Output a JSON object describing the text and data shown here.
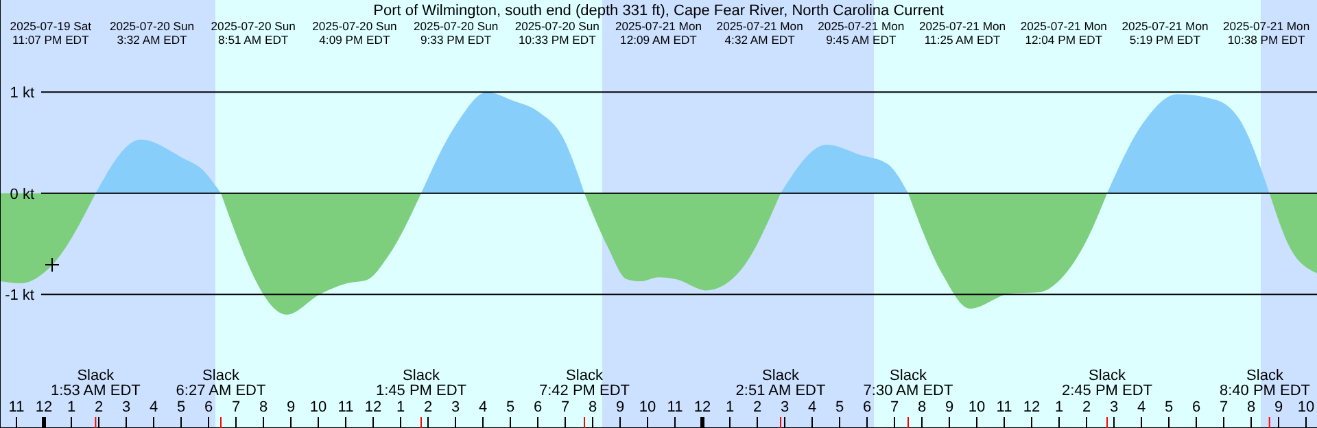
{
  "chart_data": {
    "type": "area",
    "title": "Port of Wilmington, south end (depth 331 ft), Cape Fear River, North Carolina Current",
    "x": [
      "2025-07-19T22:24",
      "2025-07-19T23:09",
      "2025-07-20T00:18",
      "2025-07-20T01:53",
      "2025-07-20T03:32",
      "2025-07-20T05:03",
      "2025-07-20T05:45",
      "2025-07-20T06:27",
      "2025-07-20T08:51",
      "2025-07-20T10:03",
      "2025-07-20T11:03",
      "2025-07-20T11:45",
      "2025-07-20T12:33",
      "2025-07-20T13:45",
      "2025-07-20T15:03",
      "2025-07-20T16:09",
      "2025-07-20T17:03",
      "2025-07-20T18:03",
      "2025-07-20T18:54",
      "2025-07-20T19:42",
      "2025-07-20T20:33",
      "2025-07-20T21:15",
      "2025-07-20T21:45",
      "2025-07-20T22:24",
      "2025-07-20T23:03",
      "2025-07-21T00:09",
      "2025-07-21T01:24",
      "2025-07-21T02:51",
      "2025-07-21T04:32",
      "2025-07-21T05:45",
      "2025-07-21T06:45",
      "2025-07-21T07:30",
      "2025-07-21T08:45",
      "2025-07-21T09:45",
      "2025-07-21T11:15",
      "2025-07-21T12:15",
      "2025-07-21T13:03",
      "2025-07-21T14:03",
      "2025-07-21T14:45",
      "2025-07-21T16:03",
      "2025-07-21T17:19",
      "2025-07-21T18:45",
      "2025-07-21T19:33",
      "2025-07-21T20:40",
      "2025-07-21T21:24",
      "2025-07-21T22:24"
    ],
    "series": [
      {
        "color": "#87cefa",
        "values": [
          null,
          null,
          null,
          0,
          0.53,
          0.35,
          0.24,
          0,
          null,
          null,
          null,
          null,
          null,
          0,
          0.69,
          1.0,
          0.92,
          0.8,
          0.56,
          0,
          null,
          null,
          null,
          null,
          null,
          null,
          null,
          0,
          0.48,
          0.38,
          0.29,
          0,
          null,
          null,
          null,
          null,
          null,
          null,
          0,
          0.69,
          0.98,
          0.92,
          0.74,
          0,
          null,
          null
        ]
      },
      {
        "color": "#7dcf7d",
        "values": [
          -0.87,
          -0.89,
          -0.71,
          0,
          null,
          null,
          null,
          0,
          -1.2,
          -1.0,
          -0.89,
          -0.86,
          -0.62,
          0,
          null,
          null,
          null,
          null,
          null,
          0,
          -0.53,
          -0.85,
          -0.87,
          -0.83,
          -0.85,
          -0.96,
          -0.76,
          0,
          null,
          null,
          null,
          0,
          -0.8,
          -1.14,
          -0.99,
          -0.98,
          -0.85,
          -0.44,
          0,
          null,
          null,
          null,
          null,
          0,
          -0.53,
          -0.79
        ]
      }
    ],
    "xlim": [
      "2025-07-19T22:24",
      "2025-07-21T22:24"
    ],
    "xticks": [
      {
        "value": "2025-07-19T23:00",
        "label": "11"
      },
      {
        "value": "2025-07-20T00:00",
        "label": "12"
      },
      {
        "value": "2025-07-20T01:00",
        "label": "1"
      },
      {
        "value": "2025-07-20T02:00",
        "label": "2"
      },
      {
        "value": "2025-07-20T03:00",
        "label": "3"
      },
      {
        "value": "2025-07-20T04:00",
        "label": "4"
      },
      {
        "value": "2025-07-20T05:00",
        "label": "5"
      },
      {
        "value": "2025-07-20T06:00",
        "label": "6"
      },
      {
        "value": "2025-07-20T07:00",
        "label": "7"
      },
      {
        "value": "2025-07-20T08:00",
        "label": "8"
      },
      {
        "value": "2025-07-20T09:00",
        "label": "9"
      },
      {
        "value": "2025-07-20T10:00",
        "label": "10"
      },
      {
        "value": "2025-07-20T11:00",
        "label": "11"
      },
      {
        "value": "2025-07-20T12:00",
        "label": "12"
      },
      {
        "value": "2025-07-20T13:00",
        "label": "1"
      },
      {
        "value": "2025-07-20T14:00",
        "label": "2"
      },
      {
        "value": "2025-07-20T15:00",
        "label": "3"
      },
      {
        "value": "2025-07-20T16:00",
        "label": "4"
      },
      {
        "value": "2025-07-20T17:00",
        "label": "5"
      },
      {
        "value": "2025-07-20T18:00",
        "label": "6"
      },
      {
        "value": "2025-07-20T19:00",
        "label": "7"
      },
      {
        "value": "2025-07-20T20:00",
        "label": "8"
      },
      {
        "value": "2025-07-20T21:00",
        "label": "9"
      },
      {
        "value": "2025-07-20T22:00",
        "label": "10"
      },
      {
        "value": "2025-07-20T23:00",
        "label": "11"
      },
      {
        "value": "2025-07-21T00:00",
        "label": "12"
      },
      {
        "value": "2025-07-21T01:00",
        "label": "1"
      },
      {
        "value": "2025-07-21T02:00",
        "label": "2"
      },
      {
        "value": "2025-07-21T03:00",
        "label": "3"
      },
      {
        "value": "2025-07-21T04:00",
        "label": "4"
      },
      {
        "value": "2025-07-21T05:00",
        "label": "5"
      },
      {
        "value": "2025-07-21T06:00",
        "label": "6"
      },
      {
        "value": "2025-07-21T07:00",
        "label": "7"
      },
      {
        "value": "2025-07-21T08:00",
        "label": "8"
      },
      {
        "value": "2025-07-21T09:00",
        "label": "9"
      },
      {
        "value": "2025-07-21T10:00",
        "label": "10"
      },
      {
        "value": "2025-07-21T11:00",
        "label": "11"
      },
      {
        "value": "2025-07-21T12:00",
        "label": "12"
      },
      {
        "value": "2025-07-21T13:00",
        "label": "1"
      },
      {
        "value": "2025-07-21T14:00",
        "label": "2"
      },
      {
        "value": "2025-07-21T15:00",
        "label": "3"
      },
      {
        "value": "2025-07-21T16:00",
        "label": "4"
      },
      {
        "value": "2025-07-21T17:00",
        "label": "5"
      },
      {
        "value": "2025-07-21T18:00",
        "label": "6"
      },
      {
        "value": "2025-07-21T19:00",
        "label": "7"
      },
      {
        "value": "2025-07-21T20:00",
        "label": "8"
      },
      {
        "value": "2025-07-21T21:00",
        "label": "9"
      },
      {
        "value": "2025-07-21T22:00",
        "label": "10"
      }
    ],
    "ylim": [
      -2.32,
      1.91
    ],
    "yticks": [
      {
        "value": 1,
        "label": "1 kt"
      },
      {
        "value": 0,
        "label": "0 kt"
      },
      {
        "value": -1,
        "label": "-1 kt"
      }
    ],
    "grid": "y",
    "bands": [
      {
        "axis": "x",
        "from": "2025-07-19T22:24",
        "to": "2025-07-20T06:15",
        "color": "#cce0ff"
      },
      {
        "axis": "x",
        "from": "2025-07-20T06:15",
        "to": "2025-07-20T20:21",
        "color": "#ddffff"
      },
      {
        "axis": "x",
        "from": "2025-07-20T20:21",
        "to": "2025-07-21T06:15",
        "color": "#cce0ff"
      },
      {
        "axis": "x",
        "from": "2025-07-21T06:15",
        "to": "2025-07-21T20:21",
        "color": "#ddffff"
      },
      {
        "axis": "x",
        "from": "2025-07-21T20:21",
        "to": "2025-07-21T22:24",
        "color": "#cce0ff"
      }
    ],
    "annotations": [
      "2025-07-19 Sat\n11:07 PM EDT",
      "2025-07-20 Sun\n3:32 AM EDT",
      "2025-07-20 Sun\n8:51 AM EDT",
      "2025-07-20 Sun\n4:09 PM EDT",
      "2025-07-20 Sun\n9:33 PM EDT",
      "2025-07-20 Sun\n10:33 PM EDT",
      "2025-07-21 Mon\n12:09 AM EDT",
      "2025-07-21 Mon\n4:32 AM EDT",
      "2025-07-21 Mon\n9:45 AM EDT",
      "2025-07-21 Mon\n11:25 AM EDT",
      "2025-07-21 Mon\n12:04 PM EDT",
      "2025-07-21 Mon\n5:19 PM EDT",
      "2025-07-21 Mon\n10:38 PM EDT",
      "Slack\n1:53 AM EDT",
      "Slack\n6:27 AM EDT",
      "Slack\n1:45 PM EDT",
      "Slack\n7:42 PM EDT",
      "Slack\n2:51 AM EDT",
      "Slack\n7:30 AM EDT",
      "Slack\n2:45 PM EDT",
      "Slack\n8:40 PM EDT"
    ]
  }
}
